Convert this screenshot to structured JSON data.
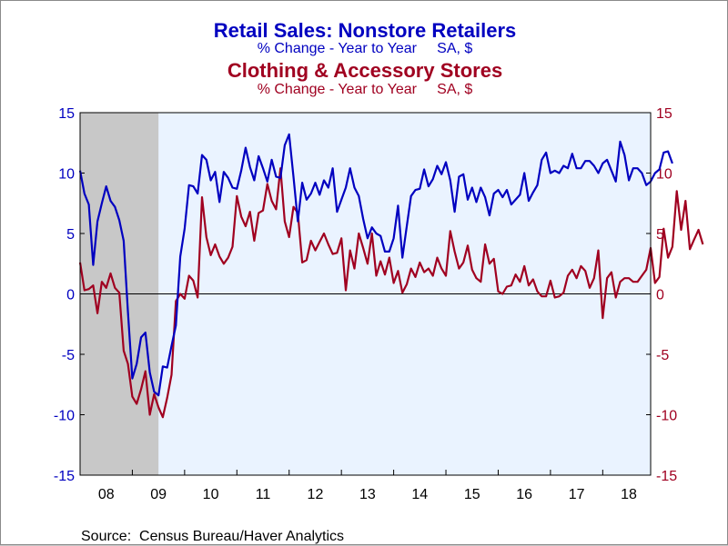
{
  "chart_data": {
    "type": "line",
    "title_1": "Retail Sales: Nonstore Retailers",
    "subtitle_1": "% Change - Year to Year     SA, $",
    "title_2": "Clothing & Accessory Stores",
    "subtitle_2": "% Change - Year to Year     SA, $",
    "source": "Source:  Census Bureau/Haver Analytics",
    "ylim": [
      -15,
      15
    ],
    "y_ticks": [
      "15",
      "10",
      "5",
      "0",
      "-5",
      "-10",
      "-15"
    ],
    "x_ticks": [
      "08",
      "09",
      "10",
      "11",
      "12",
      "13",
      "14",
      "15",
      "16",
      "17",
      "18"
    ],
    "x_range": [
      2008.0,
      2018.917
    ],
    "recession_shading": [
      2008.0,
      2009.5
    ],
    "colors": {
      "nonstore": "#0000c0",
      "clothing": "#a00020",
      "plot_bg": "#eaf3ff",
      "recession": "#c8c8c8"
    },
    "series": [
      {
        "name": "Nonstore Retailers",
        "values": [
          10.2,
          8.3,
          7.4,
          2.4,
          6.0,
          7.5,
          8.9,
          7.7,
          7.2,
          6.1,
          4.4,
          -1.5,
          -7.0,
          -5.8,
          -3.6,
          -3.2,
          -6.5,
          -8.1,
          -8.4,
          -6.0,
          -6.1,
          -4.3,
          -2.6,
          3.1,
          5.4,
          9.0,
          8.9,
          8.3,
          11.5,
          11.1,
          9.4,
          10.1,
          7.6,
          10.1,
          9.6,
          8.8,
          8.7,
          10.2,
          12.1,
          10.5,
          9.4,
          11.4,
          10.4,
          9.3,
          11.1,
          9.7,
          9.6,
          12.3,
          13.2,
          9.7,
          6.0,
          9.2,
          7.8,
          8.3,
          9.2,
          8.2,
          9.4,
          8.8,
          10.4,
          6.8,
          7.8,
          8.8,
          10.4,
          8.8,
          8.1,
          6.2,
          4.6,
          5.5,
          5.0,
          4.8,
          3.5,
          3.5,
          4.6,
          7.3,
          3.0,
          5.6,
          8.1,
          8.6,
          8.7,
          10.3,
          8.9,
          9.5,
          10.6,
          9.9,
          10.9,
          9.4,
          6.8,
          9.7,
          9.9,
          7.8,
          8.8,
          7.6,
          8.8,
          8.0,
          6.5,
          8.3,
          8.6,
          8.0,
          8.6,
          7.4,
          7.8,
          8.2,
          10.0,
          7.7,
          8.4,
          9.0,
          11.1,
          11.7,
          10.0,
          10.2,
          10.0,
          10.6,
          10.4,
          11.6,
          10.4,
          10.4,
          11.0,
          11.0,
          10.6,
          10.0,
          10.8,
          11.1,
          10.2,
          9.3,
          12.6,
          11.5,
          9.4,
          10.4,
          10.4,
          10.0,
          9.0,
          9.3,
          10.0,
          10.3,
          11.7,
          11.8,
          10.8
        ]
      },
      {
        "name": "Clothing & Accessory Stores",
        "values": [
          2.6,
          0.3,
          0.4,
          0.7,
          -1.6,
          1.0,
          0.5,
          1.7,
          0.5,
          0.1,
          -4.7,
          -5.8,
          -8.5,
          -9.1,
          -7.9,
          -6.4,
          -10.0,
          -8.3,
          -9.4,
          -10.2,
          -8.6,
          -6.7,
          -0.6,
          0.0,
          -0.4,
          1.5,
          1.1,
          -0.3,
          8.0,
          4.7,
          3.2,
          4.1,
          3.1,
          2.5,
          3.0,
          3.9,
          8.1,
          6.4,
          5.6,
          6.8,
          4.4,
          6.7,
          6.9,
          9.1,
          7.7,
          7.0,
          10.4,
          6.0,
          4.7,
          7.2,
          6.7,
          2.6,
          2.8,
          4.4,
          3.6,
          4.3,
          5.0,
          4.1,
          3.3,
          3.4,
          4.6,
          0.3,
          3.6,
          2.1,
          5.0,
          3.8,
          2.5,
          5.0,
          1.5,
          2.7,
          1.6,
          3.0,
          0.9,
          1.9,
          0.1,
          0.8,
          2.1,
          1.4,
          2.6,
          1.8,
          2.1,
          1.5,
          3.0,
          2.1,
          1.5,
          5.2,
          3.5,
          2.1,
          2.6,
          4.0,
          2.0,
          1.3,
          1.0,
          4.1,
          2.5,
          2.9,
          0.2,
          0.0,
          0.6,
          0.7,
          1.6,
          1.0,
          2.3,
          0.7,
          1.2,
          0.2,
          -0.2,
          -0.2,
          1.1,
          -0.3,
          -0.2,
          0.1,
          1.5,
          2.0,
          1.3,
          2.3,
          1.9,
          0.5,
          1.3,
          3.6,
          -2.0,
          1.3,
          1.8,
          -0.3,
          1.0,
          1.3,
          1.3,
          1.0,
          1.0,
          1.5,
          2.0,
          3.8,
          0.9,
          1.4,
          5.4,
          3.0,
          3.9,
          8.5,
          5.3,
          7.7,
          3.7,
          4.5,
          5.3,
          4.1
        ]
      }
    ]
  }
}
